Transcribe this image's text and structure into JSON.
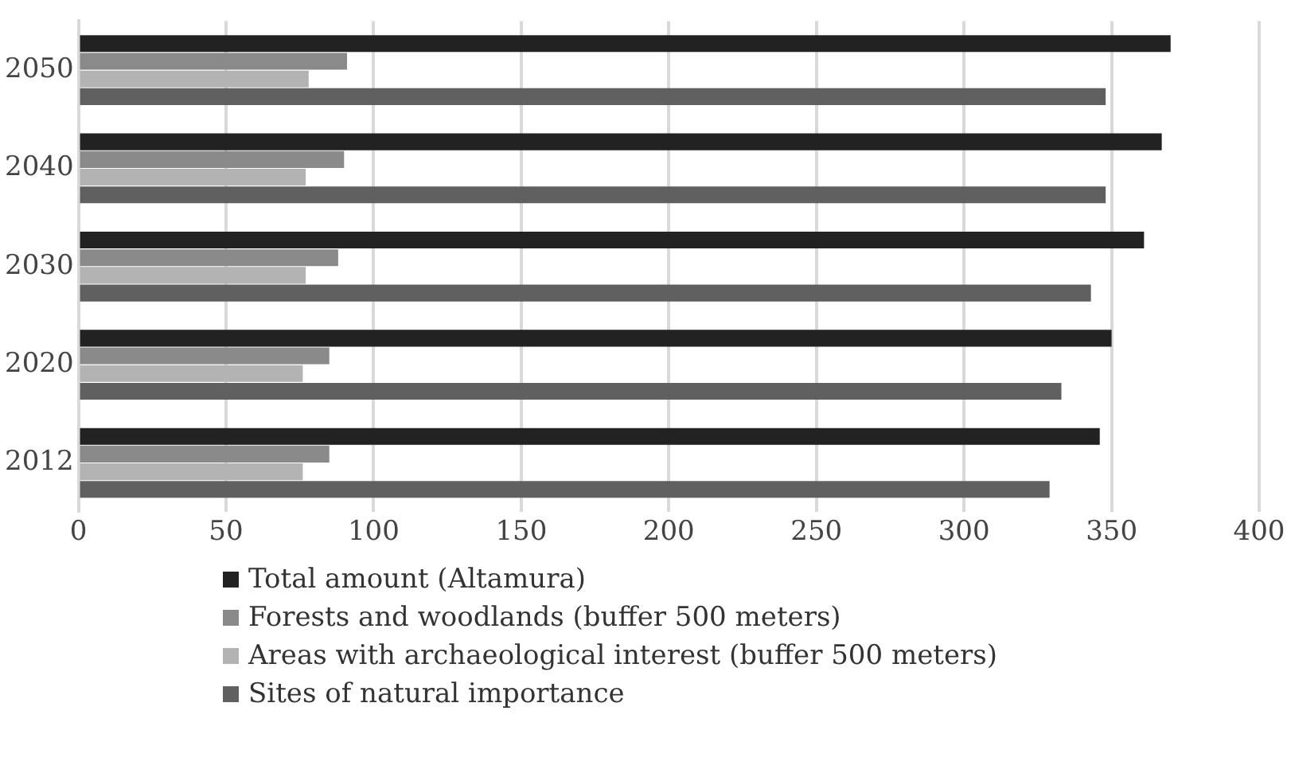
{
  "chart_data": {
    "type": "bar",
    "orientation": "horizontal",
    "categories": [
      "2050",
      "2040",
      "2030",
      "2020",
      "2012"
    ],
    "series": [
      {
        "name": "Total amount (Altamura)",
        "color": "#222222",
        "values": [
          370,
          367,
          361,
          350,
          346
        ]
      },
      {
        "name": "Forests and woodlands (buffer 500 meters)",
        "color": "#8a8a8a",
        "values": [
          91,
          90,
          88,
          85,
          85
        ]
      },
      {
        "name": "Areas with archaeological interest (buffer 500 meters)",
        "color": "#b3b3b3",
        "values": [
          78,
          77,
          77,
          76,
          76
        ]
      },
      {
        "name": "Sites of natural importance",
        "color": "#606060",
        "values": [
          348,
          348,
          343,
          333,
          329
        ]
      }
    ],
    "xlim": [
      0,
      400
    ],
    "xticks": [
      0,
      50,
      100,
      150,
      200,
      250,
      300,
      350,
      400
    ],
    "grid": "x",
    "legend": "bottom"
  }
}
